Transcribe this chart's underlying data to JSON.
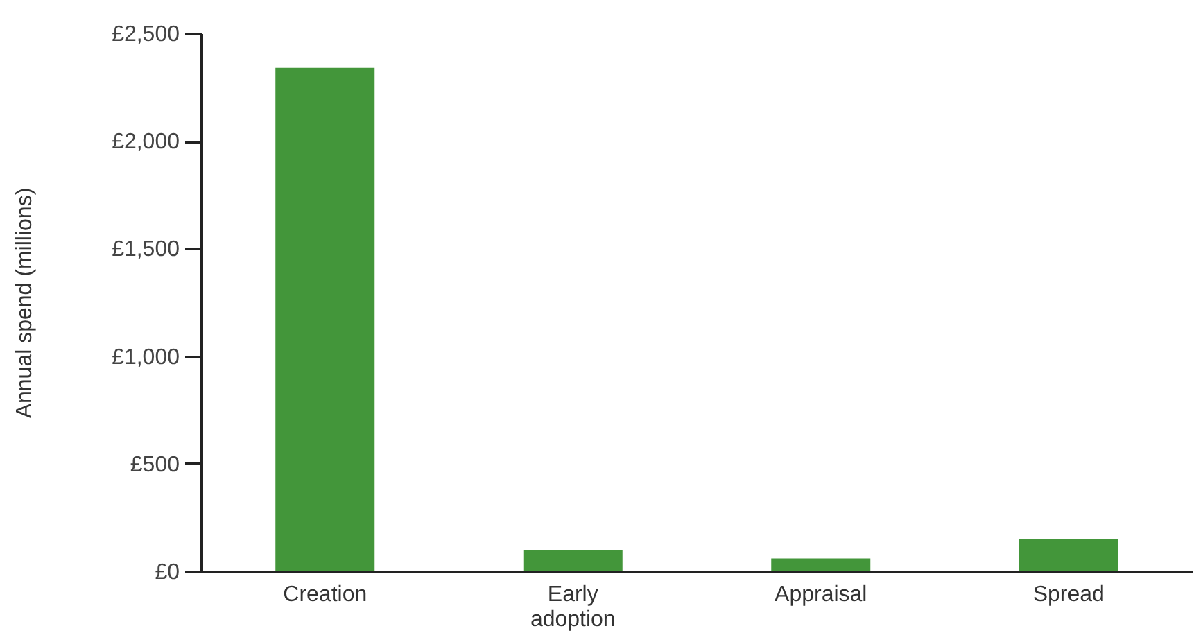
{
  "chart_data": {
    "type": "bar",
    "ylabel": "Annual spend (millions)",
    "categories": [
      "Creation",
      "Early adoption",
      "Appraisal",
      "Spread"
    ],
    "values": [
      2340,
      100,
      60,
      150
    ],
    "color": "#43963a",
    "ylim": [
      0,
      2500
    ],
    "yticks": [
      {
        "value": 0,
        "label": "£0"
      },
      {
        "value": 500,
        "label": "£500"
      },
      {
        "value": 1000,
        "label": "£1,000"
      },
      {
        "value": 1500,
        "label": "£1,500"
      },
      {
        "value": 2000,
        "label": "£2,000"
      },
      {
        "value": 2500,
        "label": "£2,500"
      }
    ],
    "grid": false
  }
}
